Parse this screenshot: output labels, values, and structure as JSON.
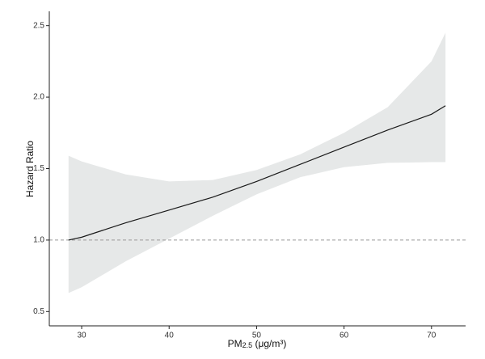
{
  "chart_data": {
    "type": "line-band",
    "ylabel": "Hazard Ratio",
    "xlabel": {
      "main": "PM",
      "sub": "2.5",
      "unit": " (μg/m³)"
    },
    "x": [
      28.5,
      30,
      35,
      40,
      45,
      50,
      55,
      60,
      65,
      70,
      71.6
    ],
    "series": [
      {
        "color": "#1a1a1a",
        "band_color": "#e6e8e8",
        "values": [
          1.0,
          1.02,
          1.12,
          1.21,
          1.3,
          1.41,
          1.53,
          1.65,
          1.77,
          1.88,
          1.94
        ],
        "upper": [
          1.59,
          1.55,
          1.46,
          1.41,
          1.42,
          1.49,
          1.6,
          1.75,
          1.93,
          2.25,
          2.45
        ],
        "lower": [
          0.63,
          0.67,
          0.85,
          1.01,
          1.17,
          1.32,
          1.44,
          1.51,
          1.54,
          1.545,
          1.545
        ]
      }
    ],
    "hline": 1.0,
    "hline_color": "#999999",
    "xlim": [
      26.3,
      73.9
    ],
    "xticks": [
      30,
      40,
      50,
      60,
      70
    ],
    "ylim": [
      0.4,
      2.6
    ],
    "yticks": [
      0.5,
      {
        "value": 1.0,
        "label": "1.0"
      },
      1.5,
      {
        "value": 2.0,
        "label": "2.0"
      },
      2.5
    ]
  }
}
